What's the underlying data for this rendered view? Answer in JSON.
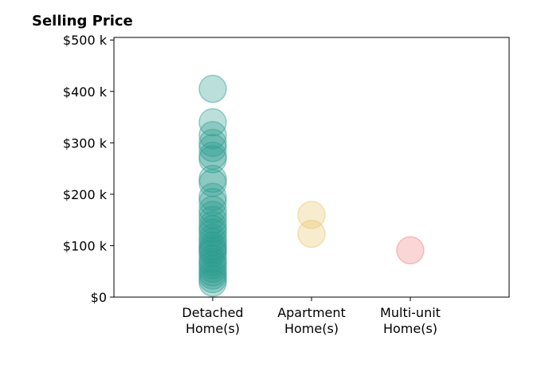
{
  "chart_data": {
    "type": "scatter",
    "title": "Selling Price",
    "xlabel": "",
    "ylabel": "",
    "categories": [
      {
        "lines": [
          "Detached",
          "Home(s)"
        ],
        "color": "#2a9d8f"
      },
      {
        "lines": [
          "Apartment",
          "Home(s)"
        ],
        "color": "#e9c46a"
      },
      {
        "lines": [
          "Multi-unit",
          "Home(s)"
        ],
        "color": "#f08080"
      }
    ],
    "y_ticks": [
      {
        "value": 0,
        "label": "$0"
      },
      {
        "value": 100000,
        "label": "$100 k"
      },
      {
        "value": 200000,
        "label": "$200 k"
      },
      {
        "value": 300000,
        "label": "$300 k"
      },
      {
        "value": 400000,
        "label": "$400 k"
      },
      {
        "value": 500000,
        "label": "$500 k"
      }
    ],
    "ylim": [
      0,
      505000
    ],
    "grid": false,
    "series": [
      {
        "category": 0,
        "values": [
          405000,
          340000,
          315000,
          300000,
          290000,
          275000,
          268000,
          230000,
          222000,
          195000,
          185000,
          170000,
          160000,
          150000,
          140000,
          132000,
          125000,
          115000,
          108000,
          100000,
          95000,
          90000,
          85000,
          75000,
          68000,
          62000,
          55000,
          48000,
          42000,
          35000,
          28000
        ]
      },
      {
        "category": 1,
        "values": [
          160000,
          123000
        ]
      },
      {
        "category": 2,
        "values": [
          91000
        ]
      }
    ]
  }
}
